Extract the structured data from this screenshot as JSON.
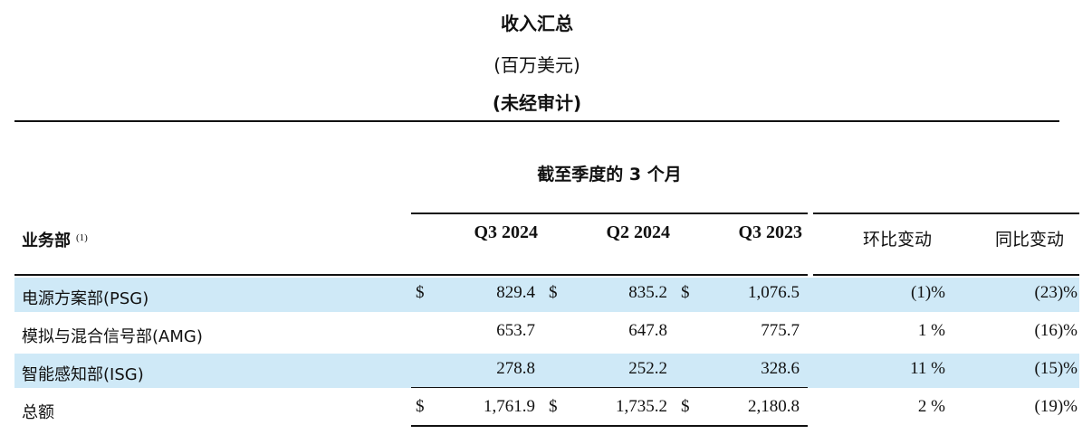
{
  "header": {
    "title": "收入汇总",
    "unit": "(百万美元)",
    "audit": "(未经审计)"
  },
  "period_label": "截至季度的 3 个月",
  "columns": {
    "segment": "业务部",
    "segment_note": "(1)",
    "q3_2024": "Q3 2024",
    "q2_2024": "Q2 2024",
    "q3_2023": "Q3 2023",
    "qoq": "环比变动",
    "yoy": "同比变动"
  },
  "rows": [
    {
      "label": "电源方案部(PSG)",
      "dollar": "$",
      "q3_2024": "829.4",
      "q2_2024": "835.2",
      "q3_2023": "1,076.5",
      "qoq": "(1)%",
      "yoy": "(23)%"
    },
    {
      "label": "模拟与混合信号部(AMG)",
      "dollar": "",
      "q3_2024": "653.7",
      "q2_2024": "647.8",
      "q3_2023": "775.7",
      "qoq": "1 %",
      "yoy": "(16)%"
    },
    {
      "label": "智能感知部(ISG)",
      "dollar": "",
      "q3_2024": "278.8",
      "q2_2024": "252.2",
      "q3_2023": "328.6",
      "qoq": "11 %",
      "yoy": "(15)%"
    },
    {
      "label": "总额",
      "dollar": "$",
      "q3_2024": "1,761.9",
      "q2_2024": "1,735.2",
      "q3_2023": "2,180.8",
      "qoq": "2 %",
      "yoy": "(19)%"
    }
  ],
  "colors": {
    "row_shade": "#cfe9f7",
    "rule": "#111111"
  }
}
